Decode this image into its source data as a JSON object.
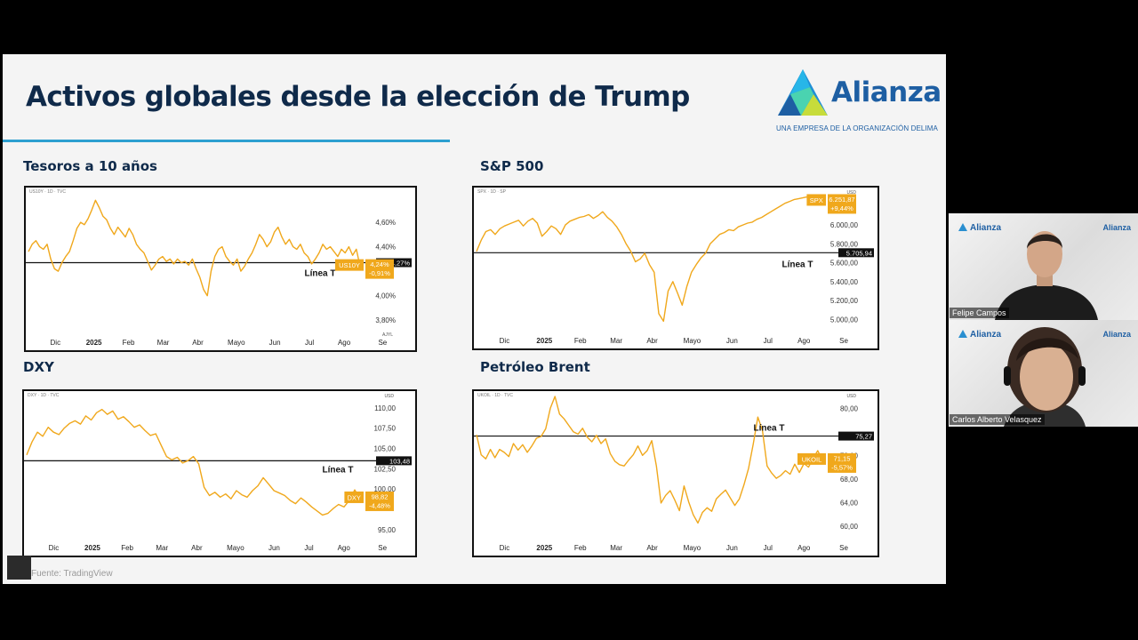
{
  "slide": {
    "title": "Activos globales desde la elección de Trump",
    "logo": {
      "name": "Alianza",
      "tagline": "UNA EMPRESA DE LA ORGANIZACIÓN DELIMA"
    },
    "source": "Fuente: TradingView"
  },
  "colors": {
    "line": "#f0a81c",
    "title": "#0f2a4a",
    "accent_rule": "#2d9fd0",
    "badge": "#f0a81c",
    "ref_line": "#111111"
  },
  "charts": [
    {
      "label": "Tesoros a 10 años",
      "header": "US10Y · 1D · TVC",
      "ylim": [
        3.7,
        4.84
      ],
      "yticks": [
        {
          "v": 4.6,
          "t": "4,60%"
        },
        {
          "v": 4.4,
          "t": "4,40%"
        },
        {
          "v": 4.0,
          "t": "4,00%"
        },
        {
          "v": 3.8,
          "t": "3,80%"
        }
      ],
      "unit_top": "",
      "unit_bottom": "AJYL",
      "x_ticks": [
        "Dic",
        "2025",
        "Feb",
        "Mar",
        "Abr",
        "Mayo",
        "Jun",
        "Jul",
        "Ago",
        "Se"
      ],
      "ref_value": 4.27,
      "ref_label": "Línea T",
      "ref_price_tag": "4,27%",
      "badge": {
        "symbol": "US10Y",
        "value": "4,24%",
        "change": "-0,91%"
      },
      "chart_data": {
        "type": "line",
        "series": [
          {
            "values": [
              4.36,
              4.42,
              4.45,
              4.4,
              4.38,
              4.42,
              4.3,
              4.22,
              4.2,
              4.27,
              4.32,
              4.36,
              4.45,
              4.55,
              4.6,
              4.58,
              4.63,
              4.7,
              4.78,
              4.72,
              4.65,
              4.62,
              4.55,
              4.5,
              4.56,
              4.52,
              4.48,
              4.55,
              4.5,
              4.42,
              4.38,
              4.35,
              4.28,
              4.21,
              4.25,
              4.3,
              4.32,
              4.28,
              4.3,
              4.26,
              4.3,
              4.27,
              4.28,
              4.25,
              4.3,
              4.22,
              4.15,
              4.05,
              4.0,
              4.2,
              4.32,
              4.38,
              4.4,
              4.32,
              4.28,
              4.25,
              4.3,
              4.2,
              4.24,
              4.3,
              4.35,
              4.42,
              4.5,
              4.46,
              4.4,
              4.44,
              4.52,
              4.56,
              4.48,
              4.42,
              4.46,
              4.4,
              4.38,
              4.42,
              4.35,
              4.32,
              4.26,
              4.3,
              4.35,
              4.42,
              4.38,
              4.4,
              4.36,
              4.32,
              4.38,
              4.35,
              4.4,
              4.33,
              4.38,
              4.24
            ]
          }
        ]
      }
    },
    {
      "label": "S&P 500",
      "header": "SPX · 1D · SP",
      "ylim": [
        4880,
        6340
      ],
      "yticks": [
        {
          "v": 6000,
          "t": "6.000,00"
        },
        {
          "v": 5800,
          "t": "5.800,00"
        },
        {
          "v": 5600,
          "t": "5.600,00"
        },
        {
          "v": 5400,
          "t": "5.400,00"
        },
        {
          "v": 5200,
          "t": "5.200,00"
        },
        {
          "v": 5000,
          "t": "5.000,00"
        }
      ],
      "unit_top": "USD",
      "unit_bottom": "",
      "x_ticks": [
        "Dic",
        "2025",
        "Feb",
        "Mar",
        "Abr",
        "Mayo",
        "Jun",
        "Jul",
        "Ago",
        "Se"
      ],
      "ref_value": 5705.94,
      "ref_label": "Línea T",
      "ref_price_tag": "5.705,94",
      "badge": {
        "symbol": "SPX",
        "value": "6.251,87",
        "change": "+9,44%"
      },
      "chart_data": {
        "type": "line",
        "series": [
          {
            "values": [
              5720,
              5840,
              5930,
              5950,
              5900,
              5960,
              5990,
              6010,
              6030,
              6050,
              5990,
              6040,
              6070,
              6020,
              5880,
              5930,
              5990,
              5960,
              5900,
              6000,
              6040,
              6060,
              6080,
              6090,
              6110,
              6070,
              6100,
              6140,
              6080,
              6040,
              5980,
              5900,
              5800,
              5720,
              5610,
              5640,
              5700,
              5580,
              5500,
              5060,
              4980,
              5300,
              5400,
              5280,
              5150,
              5350,
              5500,
              5580,
              5650,
              5700,
              5800,
              5850,
              5900,
              5920,
              5950,
              5940,
              5980,
              6000,
              6020,
              6030,
              6060,
              6080,
              6110,
              6140,
              6170,
              6200,
              6230,
              6250,
              6270,
              6280,
              6290,
              6300,
              6290,
              6270,
              6251
            ]
          }
        ]
      }
    },
    {
      "label": "DXY",
      "header": "DXY · 1D · TVC",
      "ylim": [
        94.0,
        111.4
      ],
      "yticks": [
        {
          "v": 110.0,
          "t": "110,00"
        },
        {
          "v": 107.5,
          "t": "107,50"
        },
        {
          "v": 105.0,
          "t": "105,00"
        },
        {
          "v": 102.5,
          "t": "102,50"
        },
        {
          "v": 100.0,
          "t": "100,00"
        },
        {
          "v": 95.0,
          "t": "95,00"
        }
      ],
      "unit_top": "USD",
      "unit_bottom": "",
      "x_ticks": [
        "Dic",
        "2025",
        "Feb",
        "Mar",
        "Abr",
        "Mayo",
        "Jun",
        "Jul",
        "Ago",
        "Se"
      ],
      "ref_value": 103.48,
      "ref_label": "Línea T",
      "ref_price_tag": "103,48",
      "badge": {
        "symbol": "DXY",
        "value": "98,82",
        "change": "-4,48%"
      },
      "chart_data": {
        "type": "line",
        "series": [
          {
            "values": [
              104.2,
              105.8,
              107.0,
              106.5,
              107.6,
              107.0,
              106.7,
              107.5,
              108.1,
              108.4,
              108.0,
              109.0,
              108.5,
              109.4,
              109.8,
              109.2,
              109.6,
              108.6,
              108.9,
              108.3,
              107.6,
              107.9,
              107.2,
              106.6,
              106.8,
              105.4,
              104.0,
              103.6,
              103.9,
              103.2,
              103.5,
              104.0,
              103.1,
              100.2,
              99.2,
              99.6,
              99.0,
              99.4,
              98.8,
              99.8,
              99.3,
              99.0,
              99.8,
              100.4,
              101.4,
              100.6,
              99.8,
              99.5,
              99.2,
              98.6,
              98.2,
              98.9,
              98.4,
              97.8,
              97.3,
              96.8,
              97.0,
              97.6,
              98.1,
              97.8,
              98.6,
              99.9,
              98.82
            ]
          }
        ]
      }
    },
    {
      "label": "Petróleo Brent",
      "header": "UKOIL · 1D · TVC",
      "ylim": [
        58.0,
        82.0
      ],
      "yticks": [
        {
          "v": 80.0,
          "t": "80,00"
        },
        {
          "v": 72.0,
          "t": "72,00"
        },
        {
          "v": 68.0,
          "t": "68,00"
        },
        {
          "v": 64.0,
          "t": "64,00"
        },
        {
          "v": 60.0,
          "t": "60,00"
        }
      ],
      "unit_top": "USD",
      "unit_bottom": "",
      "x_ticks": [
        "Dic",
        "2025",
        "Feb",
        "Mar",
        "Abr",
        "Mayo",
        "Jun",
        "Jul",
        "Ago",
        "Se"
      ],
      "ref_value": 75.27,
      "ref_label": "Línea T",
      "ref_price_tag": "75,27",
      "badge": {
        "symbol": "UKOIL",
        "value": "71,15",
        "change": "-5,57%"
      },
      "chart_data": {
        "type": "line",
        "series": [
          {
            "values": [
              75.5,
              72.1,
              71.4,
              73.0,
              71.6,
              73.0,
              72.5,
              71.8,
              74.0,
              72.9,
              73.8,
              72.5,
              73.6,
              74.9,
              75.2,
              76.5,
              80.0,
              82.0,
              79.0,
              78.2,
              77.1,
              76.0,
              75.6,
              76.6,
              75.1,
              74.3,
              75.4,
              74.0,
              74.8,
              72.3,
              71.0,
              70.4,
              70.2,
              71.2,
              72.1,
              73.6,
              72.0,
              72.8,
              74.5,
              70.2,
              63.9,
              65.2,
              66.0,
              64.4,
              62.6,
              66.8,
              64.1,
              61.9,
              60.5,
              62.3,
              63.1,
              62.5,
              64.6,
              65.4,
              66.1,
              64.8,
              63.5,
              64.6,
              67.0,
              69.8,
              73.9,
              78.5,
              76.2,
              70.2,
              69.0,
              68.1,
              68.6,
              69.4,
              68.8,
              70.5,
              69.1,
              70.6,
              70.0,
              71.5,
              72.8,
              71.15
            ]
          }
        ]
      }
    }
  ],
  "participants": [
    {
      "name": "Felipe Campos",
      "logo_left": "Alianza",
      "logo_right": "Alianza"
    },
    {
      "name": "Carlos Alberto Velasquez",
      "logo_left": "Alianza",
      "logo_right": "Alianza"
    }
  ]
}
